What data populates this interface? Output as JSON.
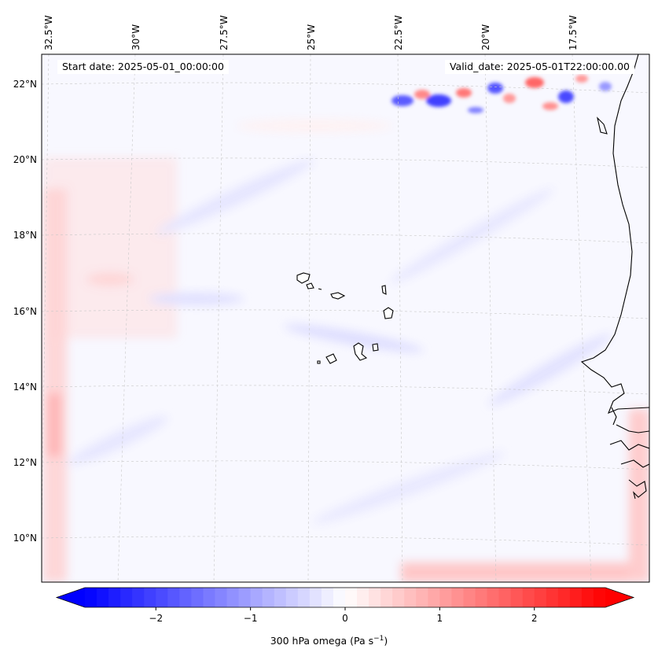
{
  "header": {
    "start_date": "Start date: 2025-05-01_00:00:00",
    "valid_date": "Valid_date: 2025-05-01T22:00:00.00"
  },
  "map": {
    "lon_labels": [
      "32.5°W",
      "30°W",
      "27.5°W",
      "25°W",
      "22.5°W",
      "20°W",
      "17.5°W"
    ],
    "lat_labels": [
      "22°N",
      "20°N",
      "18°N",
      "16°N",
      "14°N",
      "12°N",
      "10°N"
    ],
    "field_colors": {
      "negative_strong": "#0000ff",
      "neutral": "#ffffff",
      "positive_strong": "#ff0000",
      "coastline": "#000000"
    }
  },
  "colorbar": {
    "ticks": [
      "−2",
      "−1",
      "0",
      "1",
      "2"
    ],
    "label_main": "300 hPa omega (Pa s",
    "label_sup": "−1",
    "label_end": ")",
    "range": [
      -2.75,
      2.75
    ]
  }
}
